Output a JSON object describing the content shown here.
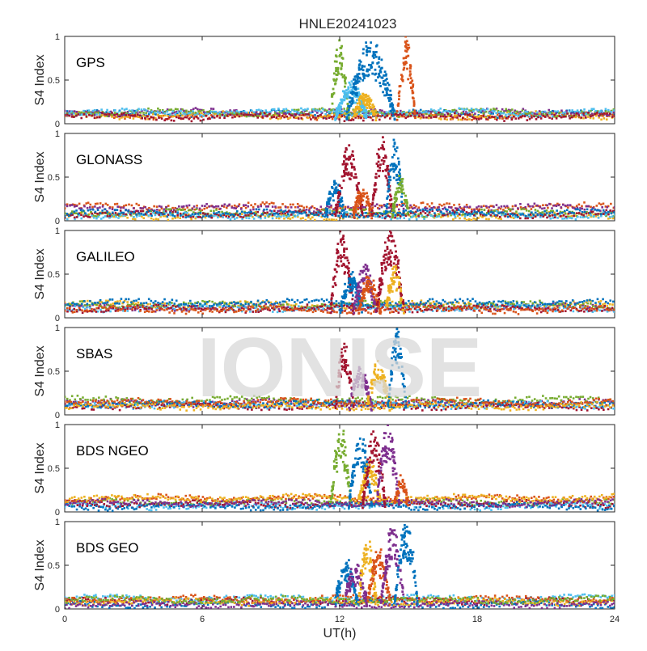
{
  "title": "HNLE20241023",
  "watermark": "IONISE",
  "xlabel": "UT(h)",
  "xticks": [
    0,
    6,
    12,
    18,
    24
  ],
  "yticks": [
    0,
    0.5,
    1
  ],
  "ylabel": "S4 Index",
  "xlim": [
    0,
    24
  ],
  "ylim": [
    0,
    1
  ],
  "colors": {
    "blue": "#0072BD",
    "orange": "#D95319",
    "yellow": "#EDB120",
    "purple": "#7E2F8E",
    "green": "#77AC30",
    "cyan": "#4DBEEE",
    "red": "#A2142F",
    "axis": "#262626",
    "watermark": "#d9d9d9"
  },
  "chart_data": [
    {
      "type": "scatter",
      "panel": "GPS",
      "label": "GPS",
      "xlim": [
        0,
        24
      ],
      "ylim": [
        0,
        1
      ],
      "ylabel": "S4 Index",
      "baseline": {
        "low": 0.04,
        "high": 0.16
      },
      "bursts": [
        {
          "start": 11.6,
          "end": 12.4,
          "peak": 0.98,
          "color": "green"
        },
        {
          "start": 11.8,
          "end": 13.2,
          "peak": 0.45,
          "color": "cyan"
        },
        {
          "start": 12.3,
          "end": 14.4,
          "peak": 0.95,
          "color": "blue"
        },
        {
          "start": 12.6,
          "end": 13.6,
          "peak": 0.35,
          "color": "yellow"
        },
        {
          "start": 14.5,
          "end": 15.3,
          "peak": 1.0,
          "color": "orange"
        }
      ]
    },
    {
      "type": "scatter",
      "panel": "GLONASS",
      "label": "GLONASS",
      "xlim": [
        0,
        24
      ],
      "ylim": [
        0,
        1
      ],
      "ylabel": "S4 Index",
      "baseline": {
        "low": 0.03,
        "high": 0.2
      },
      "bursts": [
        {
          "start": 11.4,
          "end": 12.2,
          "peak": 0.45,
          "color": "blue"
        },
        {
          "start": 11.8,
          "end": 13.0,
          "peak": 0.85,
          "color": "red"
        },
        {
          "start": 12.6,
          "end": 13.4,
          "peak": 0.35,
          "color": "orange"
        },
        {
          "start": 13.4,
          "end": 14.3,
          "peak": 0.95,
          "color": "red"
        },
        {
          "start": 14.0,
          "end": 14.8,
          "peak": 0.9,
          "color": "blue"
        },
        {
          "start": 14.3,
          "end": 15.0,
          "peak": 0.5,
          "color": "green"
        }
      ]
    },
    {
      "type": "scatter",
      "panel": "GALILEO",
      "label": "GALILEO",
      "xlim": [
        0,
        24
      ],
      "ylim": [
        0,
        1
      ],
      "ylabel": "S4 Index",
      "baseline": {
        "low": 0.04,
        "high": 0.2
      },
      "bursts": [
        {
          "start": 11.6,
          "end": 12.6,
          "peak": 1.0,
          "color": "red"
        },
        {
          "start": 12.0,
          "end": 13.0,
          "peak": 0.5,
          "color": "blue"
        },
        {
          "start": 12.6,
          "end": 13.6,
          "peak": 0.6,
          "color": "purple"
        },
        {
          "start": 12.8,
          "end": 13.8,
          "peak": 0.45,
          "color": "orange"
        },
        {
          "start": 13.6,
          "end": 14.8,
          "peak": 1.0,
          "color": "red"
        },
        {
          "start": 14.0,
          "end": 14.8,
          "peak": 0.6,
          "color": "yellow"
        }
      ]
    },
    {
      "type": "scatter",
      "panel": "SBAS",
      "label": "SBAS",
      "xlim": [
        0,
        24
      ],
      "ylim": [
        0,
        1
      ],
      "ylabel": "S4 Index",
      "baseline": {
        "low": 0.06,
        "high": 0.2
      },
      "bursts": [
        {
          "start": 11.8,
          "end": 12.6,
          "peak": 0.85,
          "color": "red"
        },
        {
          "start": 12.4,
          "end": 13.4,
          "peak": 0.55,
          "color": "purple"
        },
        {
          "start": 13.2,
          "end": 14.2,
          "peak": 0.6,
          "color": "yellow"
        },
        {
          "start": 14.1,
          "end": 14.9,
          "peak": 0.98,
          "color": "blue"
        }
      ]
    },
    {
      "type": "scatter",
      "panel": "BDS NGEO",
      "label": "BDS NGEO",
      "xlim": [
        0,
        24
      ],
      "ylim": [
        0,
        1
      ],
      "ylabel": "S4 Index",
      "baseline": {
        "low": 0.04,
        "high": 0.18
      },
      "bursts": [
        {
          "start": 11.6,
          "end": 12.5,
          "peak": 0.98,
          "color": "green"
        },
        {
          "start": 12.4,
          "end": 13.4,
          "peak": 0.9,
          "color": "blue"
        },
        {
          "start": 12.8,
          "end": 13.8,
          "peak": 0.55,
          "color": "yellow"
        },
        {
          "start": 13.0,
          "end": 14.0,
          "peak": 0.9,
          "color": "red"
        },
        {
          "start": 13.6,
          "end": 14.6,
          "peak": 1.0,
          "color": "purple"
        },
        {
          "start": 14.4,
          "end": 15.0,
          "peak": 0.4,
          "color": "orange"
        }
      ]
    },
    {
      "type": "scatter",
      "panel": "BDS GEO",
      "label": "BDS GEO",
      "xlim": [
        0,
        24
      ],
      "ylim": [
        0,
        1
      ],
      "ylabel": "S4 Index",
      "baseline": {
        "low": 0.03,
        "high": 0.14
      },
      "bursts": [
        {
          "start": 11.8,
          "end": 12.8,
          "peak": 0.55,
          "color": "blue"
        },
        {
          "start": 12.2,
          "end": 13.2,
          "peak": 0.5,
          "color": "purple"
        },
        {
          "start": 12.8,
          "end": 13.6,
          "peak": 0.8,
          "color": "yellow"
        },
        {
          "start": 13.2,
          "end": 14.2,
          "peak": 0.7,
          "color": "orange"
        },
        {
          "start": 13.8,
          "end": 14.8,
          "peak": 0.95,
          "color": "purple"
        },
        {
          "start": 14.4,
          "end": 15.4,
          "peak": 1.0,
          "color": "blue"
        }
      ]
    }
  ]
}
